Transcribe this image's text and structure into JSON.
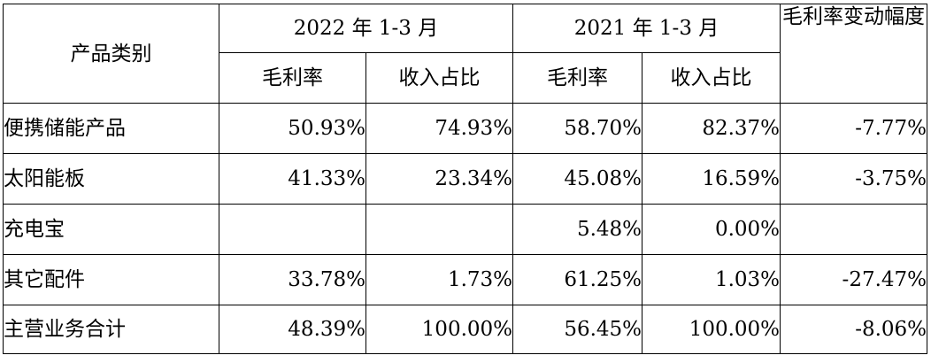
{
  "table": {
    "header": {
      "category": "产品类别",
      "period_2022": "2022 年 1-3 月",
      "period_2021": "2021 年 1-3 月",
      "gross_margin": "毛利率",
      "revenue_share": "收入占比",
      "change_col": "毛利率变动幅度"
    },
    "rows": [
      {
        "name": "便携储能产品",
        "gm_2022": "50.93%",
        "share_2022": "74.93%",
        "gm_2021": "58.70%",
        "share_2021": "82.37%",
        "change": "-7.77%"
      },
      {
        "name": "太阳能板",
        "gm_2022": "41.33%",
        "share_2022": "23.34%",
        "gm_2021": "45.08%",
        "share_2021": "16.59%",
        "change": "-3.75%"
      },
      {
        "name": "充电宝",
        "gm_2022": "",
        "share_2022": "",
        "gm_2021": "5.48%",
        "share_2021": "0.00%",
        "change": ""
      },
      {
        "name": "其它配件",
        "gm_2022": "33.78%",
        "share_2022": "1.73%",
        "gm_2021": "61.25%",
        "share_2021": "1.03%",
        "change": "-27.47%"
      }
    ],
    "total": {
      "name": "主营业务合计",
      "gm_2022": "48.39%",
      "share_2022": "100.00%",
      "gm_2021": "56.45%",
      "share_2021": "100.00%",
      "change": "-8.06%"
    }
  }
}
